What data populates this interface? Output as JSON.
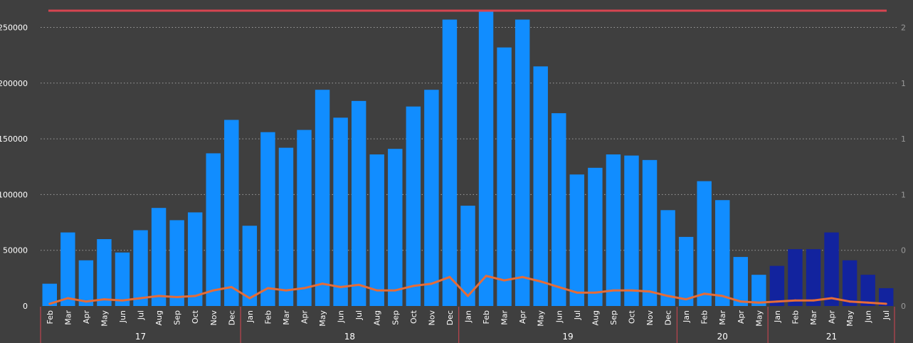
{
  "colors": {
    "background": "#3f3f3f",
    "bar_primary": "#118dff",
    "bar_secondary": "#12239e",
    "line": "#e66c37",
    "reference_line": "#d64550",
    "grid": "#a0a0a0",
    "year_divider": "#d64550"
  },
  "chart_data": {
    "type": "bar",
    "title": "",
    "xlabel": "",
    "ylabel": "",
    "ylim": [
      0,
      265000
    ],
    "y_ticks": [
      0,
      50000,
      100000,
      150000,
      200000,
      250000
    ],
    "y_tick_labels": [
      "0",
      "50000",
      "100000",
      "150000",
      "200000",
      "250000"
    ],
    "right_axis_tick_labels": [
      "0",
      "0",
      "1",
      "1",
      "1",
      "2"
    ],
    "grid": true,
    "legend": "none",
    "reference_line": 265000,
    "year_groups": [
      {
        "label": "17",
        "months": [
          "Feb",
          "Mar",
          "Apr",
          "May",
          "Jun",
          "Jul",
          "Aug",
          "Sep",
          "Oct",
          "Nov",
          "Dec"
        ]
      },
      {
        "label": "18",
        "months": [
          "Jan",
          "Feb",
          "Mar",
          "Apr",
          "May",
          "Jun",
          "Jul",
          "Aug",
          "Sep",
          "Oct",
          "Nov",
          "Dec"
        ]
      },
      {
        "label": "19",
        "months": [
          "Jan",
          "Feb",
          "Mar",
          "Apr",
          "May",
          "Jun",
          "Jul",
          "Aug",
          "Sep",
          "Oct",
          "Nov",
          "Dec"
        ]
      },
      {
        "label": "20",
        "months": [
          "Jan",
          "Feb",
          "Mar",
          "Apr",
          "May"
        ]
      },
      {
        "label": "21",
        "months": [
          "Jan",
          "Feb",
          "Mar",
          "Apr",
          "May",
          "Jun",
          "Jul"
        ]
      }
    ],
    "values": [
      20000,
      66000,
      41000,
      60000,
      48000,
      68000,
      88000,
      77000,
      84000,
      137000,
      167000,
      72000,
      156000,
      142000,
      158000,
      194000,
      169000,
      184000,
      136000,
      141000,
      179000,
      194000,
      257000,
      90000,
      265000,
      232000,
      257000,
      215000,
      173000,
      118000,
      124000,
      136000,
      135000,
      131000,
      86000,
      62000,
      112000,
      95000,
      44000,
      28000,
      36000,
      51000,
      51000,
      66000,
      41000,
      28000,
      16000
    ],
    "bar_highlight": [
      0,
      0,
      0,
      0,
      0,
      0,
      0,
      0,
      0,
      0,
      0,
      0,
      0,
      0,
      0,
      0,
      0,
      0,
      0,
      0,
      0,
      0,
      0,
      0,
      0,
      0,
      0,
      0,
      0,
      0,
      0,
      0,
      0,
      0,
      0,
      0,
      0,
      0,
      0,
      0,
      1,
      1,
      1,
      1,
      1,
      1,
      1
    ],
    "line_values": [
      2000,
      7000,
      4000,
      6000,
      5000,
      7000,
      9000,
      8000,
      9000,
      14000,
      17000,
      7000,
      16000,
      14000,
      16000,
      20000,
      17000,
      19000,
      14000,
      14000,
      18000,
      20000,
      26000,
      9000,
      27000,
      23000,
      26000,
      22000,
      17000,
      12000,
      12000,
      14000,
      14000,
      13000,
      9000,
      6000,
      11000,
      9000,
      4000,
      3000,
      4000,
      5000,
      5000,
      7000,
      4000,
      3000,
      2000
    ]
  }
}
